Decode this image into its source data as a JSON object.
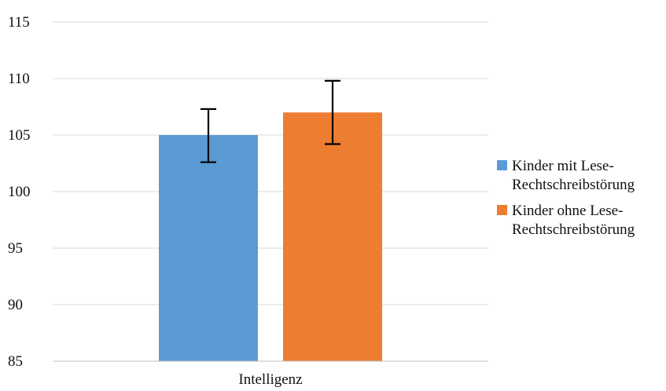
{
  "chart_data": {
    "type": "bar",
    "categories": [
      "Intelligenz"
    ],
    "series": [
      {
        "name": [
          "Kinder mit Lese-",
          "Rechtschreibstörung"
        ],
        "values": [
          105
        ],
        "error_low": [
          102.6
        ],
        "error_high": [
          107.3
        ],
        "color": "#5b9bd5"
      },
      {
        "name": [
          "Kinder ohne Lese-",
          "Rechtschreibstörung"
        ],
        "values": [
          107
        ],
        "error_low": [
          104.2
        ],
        "error_high": [
          109.8
        ],
        "color": "#ed7d31"
      }
    ],
    "yticks": [
      "115",
      "110",
      "105",
      "100",
      "95",
      "90",
      "85"
    ],
    "ylim": [
      85,
      115
    ],
    "grid": true,
    "legend_position": "right"
  }
}
